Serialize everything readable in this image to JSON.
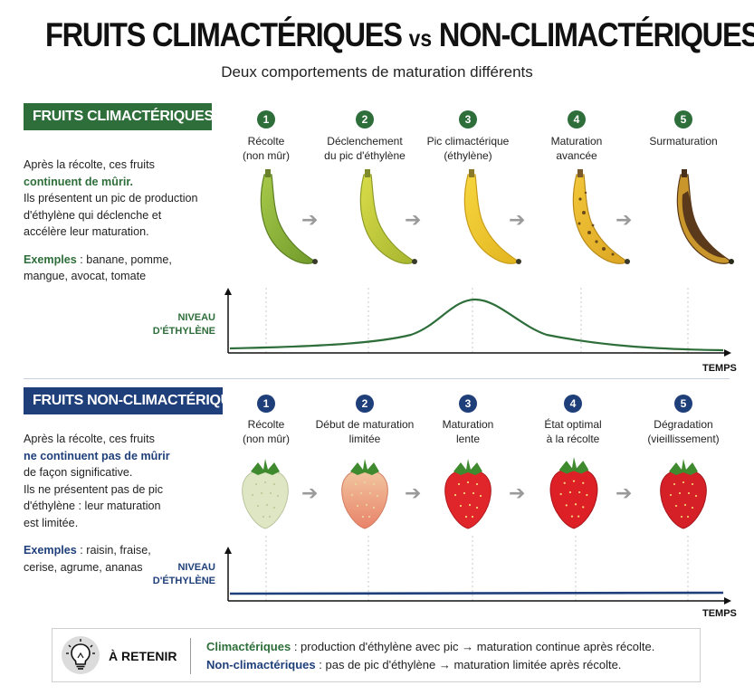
{
  "header": {
    "title_left": "FRUITS CLIMACTÉRIQUES",
    "title_vs": "vs",
    "title_right": "NON-CLIMACTÉRIQUES",
    "subtitle": "Deux comportements de maturation différents"
  },
  "climacteric": {
    "badge": "FRUITS CLIMACTÉRIQUES",
    "desc_line1": "Après la récolte, ces fruits",
    "desc_highlight": "continuent de mûrir.",
    "desc_line2": "Ils présentent un pic de production",
    "desc_line3": "d'éthylène qui déclenche et",
    "desc_line4": "accélère leur maturation.",
    "examples_label": "Exemples",
    "examples_text": " : banane, pomme,",
    "examples_text2": "mangue, avocat, tomate",
    "steps": [
      {
        "num": "1",
        "line1": "Récolte",
        "line2": "(non mûr)"
      },
      {
        "num": "2",
        "line1": "Déclenchement",
        "line2": "du pic d'éthylène"
      },
      {
        "num": "3",
        "line1": "Pic climactérique",
        "line2": "(éthylène)"
      },
      {
        "num": "4",
        "line1": "Maturation",
        "line2": "avancée"
      },
      {
        "num": "5",
        "line1": "Surmaturation",
        "line2": ""
      }
    ],
    "axis_label_1": "NIVEAU",
    "axis_label_2": "D'ÉTHYLÈNE",
    "axis_x": "TEMPS",
    "colors": {
      "accent": "#2e6e3a"
    }
  },
  "non_climacteric": {
    "badge": "FRUITS NON-CLIMACTÉRIQUES",
    "desc_line1": "Après la récolte, ces fruits",
    "desc_highlight": "ne continuent pas de mûrir",
    "desc_line2": "de façon significative.",
    "desc_line3": "Ils ne présentent pas de pic",
    "desc_line4": "d'éthylène : leur maturation",
    "desc_line5": "est limitée.",
    "examples_label": "Exemples",
    "examples_text": " : raisin, fraise,",
    "examples_text2": "cerise, agrume, ananas",
    "steps": [
      {
        "num": "1",
        "line1": "Récolte",
        "line2": "(non mûr)"
      },
      {
        "num": "2",
        "line1": "Début de maturation",
        "line2": "limitée"
      },
      {
        "num": "3",
        "line1": "Maturation",
        "line2": "lente"
      },
      {
        "num": "4",
        "line1": "État optimal",
        "line2": "à la récolte"
      },
      {
        "num": "5",
        "line1": "Dégradation",
        "line2": "(vieillissement)"
      }
    ],
    "axis_label_1": "NIVEAU",
    "axis_label_2": "D'ÉTHYLÈNE",
    "axis_x": "TEMPS",
    "colors": {
      "accent": "#1f3f7a"
    }
  },
  "retenir": {
    "title": "À RETENIR",
    "line1_label": "Climactériques",
    "line1_text": " : production d'éthylène avec pic → maturation continue après récolte.",
    "line2_label": "Non-climactériques",
    "line2_text": " : pas de pic d'éthylène → maturation limitée après récolte.",
    "icon": "lightbulb-icon"
  }
}
